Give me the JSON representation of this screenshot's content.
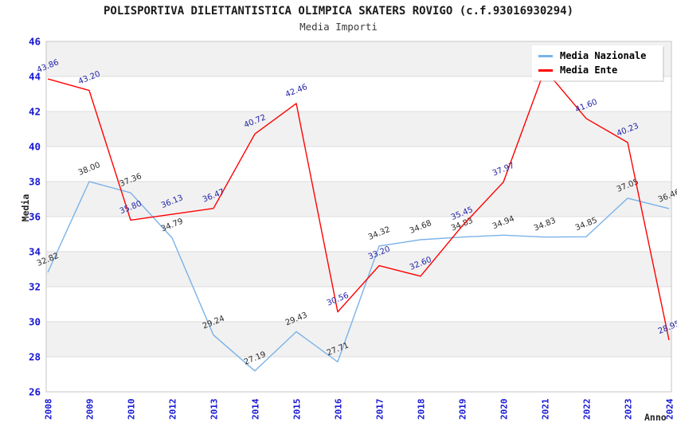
{
  "header": {
    "title": "POLISPORTIVA DILETTANTISTICA OLIMPICA SKATERS ROVIGO (c.f.93016930294)",
    "subtitle": "Media Importi"
  },
  "axes": {
    "y_title": "Media",
    "x_title": "Anno"
  },
  "legend": {
    "items": [
      {
        "label": "Media Nazionale",
        "color": "#7AB2E8"
      },
      {
        "label": "Media Ente",
        "color": "#FF0000"
      }
    ]
  },
  "colors": {
    "tick_label": "#1717D4",
    "band_gray": "#F1F1F1",
    "band_white": "#FFFFFF",
    "grid_line": "#DCDCDC",
    "plot_border": "#C6C6C6"
  },
  "chart_data": {
    "type": "line",
    "title": "POLISPORTIVA DILETTANTISTICA OLIMPICA SKATERS ROVIGO (c.f.93016930294)",
    "subtitle": "Media Importi",
    "xlabel": "Anno",
    "ylabel": "Media",
    "ylim": [
      26,
      46
    ],
    "y_tick_step": 2,
    "grid": "horizontal bands, alternating white/light-gray",
    "legend_position": "top-right",
    "categories": [
      "2008",
      "2009",
      "2010",
      "2012",
      "2013",
      "2014",
      "2015",
      "2016",
      "2017",
      "2018",
      "2019",
      "2020",
      "2021",
      "2022",
      "2023",
      "2024"
    ],
    "series": [
      {
        "name": "Media Nazionale",
        "color": "#7AB2E8",
        "label_color": "#2B2B2B",
        "values": [
          32.82,
          38.0,
          37.36,
          34.79,
          29.24,
          27.19,
          29.43,
          27.71,
          34.32,
          34.68,
          34.83,
          34.94,
          34.83,
          34.85,
          37.05,
          36.46
        ],
        "point_labels": [
          "32.82",
          "38.00",
          "37.36",
          "34.79",
          "29.24",
          "27.19",
          "29.43",
          "27.71",
          "34.32",
          "34.68",
          "34.83",
          "34.94",
          "34.83",
          "34.85",
          "37.05",
          "36.46"
        ]
      },
      {
        "name": "Media Ente",
        "color": "#FF0000",
        "label_color": "#2222A8",
        "values": [
          43.86,
          43.2,
          35.8,
          36.13,
          36.47,
          40.72,
          42.46,
          30.56,
          33.2,
          32.6,
          35.45,
          37.97,
          44.4,
          41.6,
          40.23,
          28.95
        ],
        "point_labels": [
          "43.86",
          "43.20",
          "35.80",
          "36.13",
          "36.47",
          "40.72",
          "42.46",
          "30.56",
          "33.20",
          "32.60",
          "35.45",
          "37.97",
          null,
          "41.60",
          "40.23",
          "28.95"
        ]
      }
    ],
    "notes": "2021 Media Ente point label is hidden behind the legend box; value estimated from line peak."
  }
}
